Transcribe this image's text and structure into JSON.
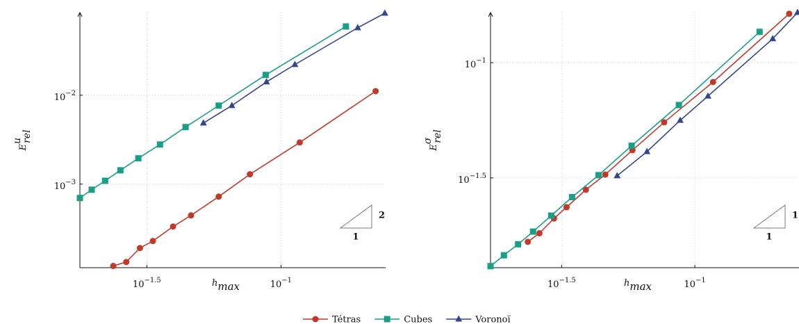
{
  "chart_data": [
    {
      "type": "line",
      "xlabel": "hmax",
      "ylabel": "Eurel",
      "xlog": true,
      "ylog": true,
      "grid": true,
      "xlim": [
        0.0178,
        0.2455
      ],
      "ylim": [
        0.0001148,
        0.0851
      ],
      "xticks": [
        {
          "value": 0.03162,
          "label": "10−1.5"
        },
        {
          "value": 0.1,
          "label": "10−1"
        }
      ],
      "yticks": [
        {
          "value": 0.001,
          "label": "10−3"
        },
        {
          "value": 0.01,
          "label": "10−2"
        }
      ],
      "slope": {
        "rise": "2",
        "run": "1"
      },
      "series": [
        {
          "name": "Tétras",
          "color": "#c0392b",
          "marker": "circle",
          "x": [
            0.0237,
            0.0265,
            0.0298,
            0.0333,
            0.0396,
            0.0462,
            0.0586,
            0.0766,
            0.1175,
            0.2254
          ],
          "values": [
            0.00012,
            0.000133,
            0.000191,
            0.000229,
            0.000333,
            0.000445,
            0.000723,
            0.00129,
            0.00294,
            0.0111
          ]
        },
        {
          "name": "Cubes",
          "color": "#1a9e86",
          "marker": "square",
          "x": [
            0.0178,
            0.0197,
            0.0221,
            0.0252,
            0.0294,
            0.0354,
            0.0441,
            0.0586,
            0.0877,
            0.1746
          ],
          "values": [
            0.000698,
            0.000865,
            0.00109,
            0.00143,
            0.00195,
            0.00279,
            0.00438,
            0.00764,
            0.0169,
            0.0593
          ]
        },
        {
          "name": "Voronoï",
          "color": "#34468a",
          "marker": "triangle",
          "x": [
            0.0514,
            0.0656,
            0.0883,
            0.1127,
            0.1932,
            0.2438
          ],
          "values": [
            0.00486,
            0.00764,
            0.0141,
            0.0221,
            0.0573,
            0.0836
          ]
        }
      ]
    },
    {
      "type": "line",
      "xlabel": "hmax",
      "ylabel": "Eσrel",
      "xlog": true,
      "ylog": true,
      "grid": true,
      "xlim": [
        0.0171,
        0.246
      ],
      "ylim": [
        0.0129,
        0.165
      ],
      "xticks": [
        {
          "value": 0.03162,
          "label": "10−1.5"
        },
        {
          "value": 0.1,
          "label": "10−1"
        }
      ],
      "yticks": [
        {
          "value": 0.03162,
          "label": "10−1.5"
        },
        {
          "value": 0.1,
          "label": "10−1"
        }
      ],
      "slope": {
        "rise": "1",
        "run": "1"
      },
      "series": [
        {
          "color": "#c0392b",
          "marker": "circle",
          "x": [
            0.0236,
            0.0261,
            0.0296,
            0.033,
            0.039,
            0.0461,
            0.0583,
            0.0767,
            0.117,
            0.226
          ],
          "values": [
            0.0167,
            0.0182,
            0.0211,
            0.0236,
            0.0281,
            0.0327,
            0.0417,
            0.0551,
            0.0824,
            0.163
          ]
        },
        {
          "color": "#1a9e86",
          "marker": "square",
          "x": [
            0.0171,
            0.0192,
            0.0217,
            0.0247,
            0.0289,
            0.0346,
            0.0435,
            0.0579,
            0.0871,
            0.175
          ],
          "values": [
            0.0131,
            0.0146,
            0.0163,
            0.0185,
            0.0217,
            0.0261,
            0.0325,
            0.0436,
            0.0655,
            0.136
          ]
        },
        {
          "color": "#34468a",
          "marker": "triangle",
          "x": [
            0.0511,
            0.0661,
            0.0881,
            0.112,
            0.196,
            0.243
          ],
          "values": [
            0.0323,
            0.0411,
            0.0562,
            0.0716,
            0.127,
            0.165
          ]
        }
      ]
    }
  ]
}
